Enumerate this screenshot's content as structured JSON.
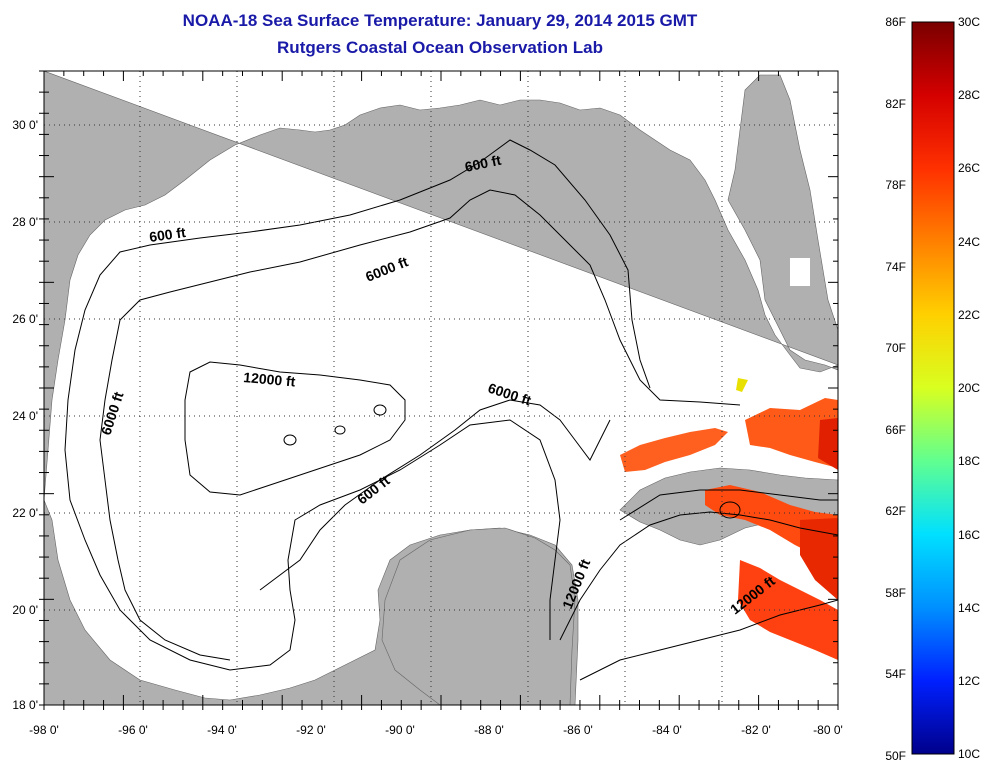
{
  "title": {
    "line1": "NOAA-18 Sea Surface Temperature:  January 29, 2014 2015 GMT",
    "line2": "Rutgers Coastal Ocean Observation Lab"
  },
  "map": {
    "lon_ticks": [
      "-98 0'",
      "-96 0'",
      "-94 0'",
      "-92 0'",
      "-90 0'",
      "-88 0'",
      "-86 0'",
      "-84 0'",
      "-82 0'",
      "-80 0'"
    ],
    "lat_ticks": [
      "30 0'",
      "28 0'",
      "26 0'",
      "24 0'",
      "22 0'",
      "20 0'",
      "18 0'"
    ],
    "contour_labels": [
      "600 ft",
      "6000 ft",
      "12000 ft",
      "6000 ft",
      "600 ft",
      "6000 ft",
      "600 ft",
      "12000 ft",
      "12000 ft"
    ],
    "land_color": "#b0b0b0",
    "water_color": "#ffffff"
  },
  "colorbar": {
    "fahrenheit_labels": [
      "86F",
      "82F",
      "78F",
      "74F",
      "70F",
      "66F",
      "62F",
      "58F",
      "54F",
      "50F"
    ],
    "celsius_labels": [
      "30C",
      "28C",
      "26C",
      "24C",
      "22C",
      "20C",
      "18C",
      "16C",
      "14C",
      "12C",
      "10C"
    ],
    "colormap": [
      "#7a0000",
      "#d40000",
      "#ff3000",
      "#ff8000",
      "#ffd000",
      "#d8ff20",
      "#60ff90",
      "#00e0ff",
      "#0090ff",
      "#0020ff",
      "#00008a"
    ]
  }
}
